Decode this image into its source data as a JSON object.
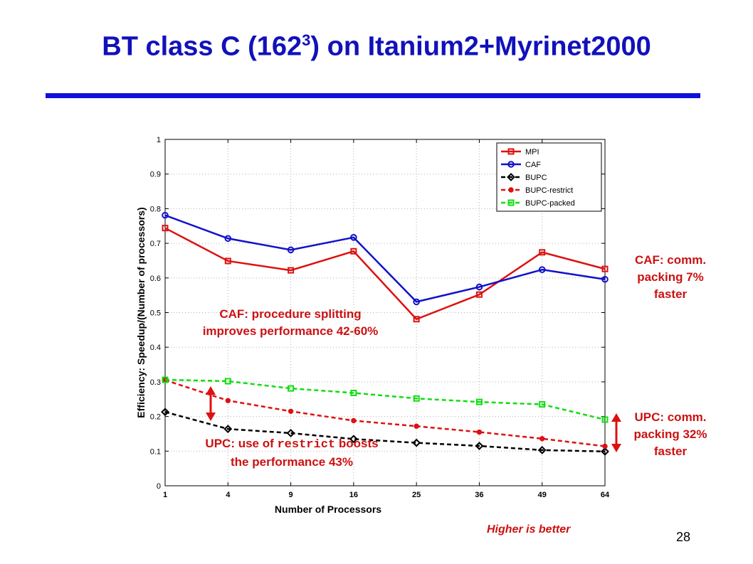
{
  "slide": {
    "title_main": "BT class C (162",
    "title_sup": "3",
    "title_rest": ") on Itanium2+Myrinet2000",
    "page_number": "28",
    "footer_note": "Higher is better"
  },
  "annotations": {
    "caf_split_line1": "CAF: procedure splitting",
    "caf_split_line2": "improves performance 42-60%",
    "upc_restrict_pre": "UPC: use of ",
    "upc_restrict_code": "restrict",
    "upc_restrict_post": " boosts",
    "upc_restrict_line2": "the performance 43%",
    "caf_pack_line1": "CAF: comm.",
    "caf_pack_line2": "packing 7%",
    "caf_pack_line3": "faster",
    "upc_pack_line1": "UPC: comm.",
    "upc_pack_line2": "packing 32%",
    "upc_pack_line3": "faster",
    "arrow_color": "#dd1111"
  },
  "chart_data": {
    "type": "line",
    "xlabel": "Number of Processors",
    "ylabel": "Efficiency: Speedup/(Number of processors)",
    "x_scale": "sqrt",
    "x": [
      1,
      4,
      9,
      16,
      25,
      36,
      49,
      64
    ],
    "x_tick_labels": [
      "1",
      "4",
      "9",
      "16",
      "25",
      "36",
      "49",
      "64"
    ],
    "ylim": [
      0,
      1
    ],
    "y_ticks": [
      0,
      0.1,
      0.2,
      0.3,
      0.4,
      0.5,
      0.6,
      0.7,
      0.8,
      0.9,
      1
    ],
    "y_tick_labels": [
      "0",
      "0.1",
      "0.2",
      "0.3",
      "0.4",
      "0.5",
      "0.6",
      "0.7",
      "0.8",
      "0.9",
      "1"
    ],
    "grid": true,
    "legend_position": "top-right",
    "series": [
      {
        "name": "MPI",
        "color": "#dd1111",
        "style": "solid",
        "marker": "square",
        "values": [
          0.744,
          0.649,
          0.622,
          0.677,
          0.481,
          0.552,
          0.674,
          0.626
        ]
      },
      {
        "name": "CAF",
        "color": "#1111cc",
        "style": "solid",
        "marker": "circle",
        "values": [
          0.781,
          0.714,
          0.681,
          0.717,
          0.531,
          0.574,
          0.624,
          0.596
        ]
      },
      {
        "name": "BUPC",
        "color": "#000000",
        "style": "dashed",
        "marker": "diamond",
        "values": [
          0.213,
          0.164,
          0.152,
          0.135,
          0.124,
          0.115,
          0.103,
          0.099
        ]
      },
      {
        "name": "BUPC-restrict",
        "color": "#dd1111",
        "style": "dashed",
        "marker": "dot",
        "values": [
          0.305,
          0.246,
          0.215,
          0.188,
          0.172,
          0.155,
          0.136,
          0.114
        ]
      },
      {
        "name": "BUPC-packed",
        "color": "#11dd11",
        "style": "dashed",
        "marker": "square",
        "values": [
          0.306,
          0.302,
          0.281,
          0.268,
          0.252,
          0.242,
          0.235,
          0.191
        ]
      }
    ]
  }
}
